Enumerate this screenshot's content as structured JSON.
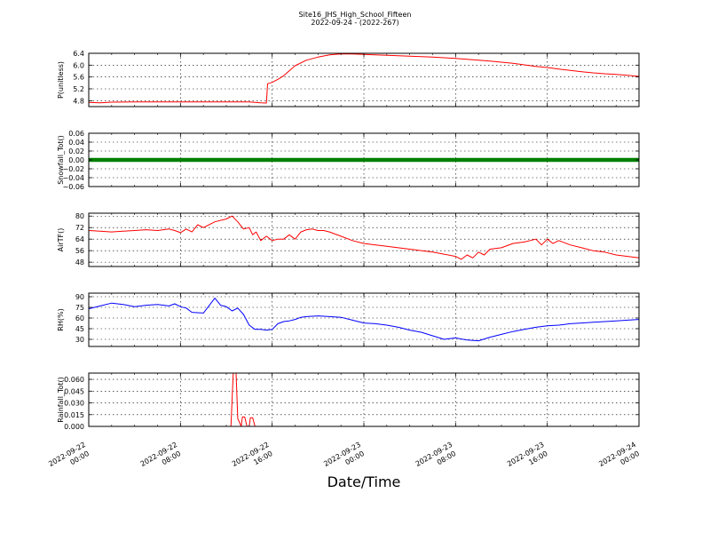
{
  "header": {
    "title": "Site16_JHS_High_School_Fifteen",
    "subtitle": "2022-09-24 - (2022-267)"
  },
  "chart_data": [
    {
      "type": "line",
      "ylabel": "P(unitless)",
      "ylim": [
        4.6,
        6.4
      ],
      "yticks": [
        "4.8",
        "5.2",
        "5.6",
        "6.0",
        "6.4"
      ],
      "grid": true,
      "series": [
        {
          "color": "#ff0000",
          "x": [
            0,
            1,
            2,
            4,
            6,
            8,
            10,
            12,
            14,
            15,
            15.5,
            15.6,
            16,
            16.5,
            17,
            18,
            19,
            20,
            21,
            22,
            23,
            24,
            26,
            28,
            30,
            32,
            33,
            34,
            35,
            36,
            37,
            38,
            39,
            40,
            41,
            42,
            43,
            44,
            45,
            46,
            47,
            48
          ],
          "y": [
            4.74,
            4.73,
            4.75,
            4.76,
            4.76,
            4.76,
            4.76,
            4.76,
            4.76,
            4.73,
            4.72,
            5.37,
            5.42,
            5.52,
            5.64,
            5.98,
            6.17,
            6.27,
            6.35,
            6.38,
            6.38,
            6.36,
            6.33,
            6.3,
            6.27,
            6.23,
            6.2,
            6.17,
            6.14,
            6.1,
            6.06,
            6.01,
            5.96,
            5.92,
            5.87,
            5.82,
            5.78,
            5.74,
            5.71,
            5.69,
            5.66,
            5.62
          ]
        }
      ]
    },
    {
      "type": "line",
      "ylabel": "Snowfall_Tot()",
      "ylim": [
        -0.06,
        0.06
      ],
      "yticks": [
        "−0.06",
        "−0.04",
        "−0.02",
        "0.00",
        "0.02",
        "0.04",
        "0.06"
      ],
      "grid": true,
      "series": [
        {
          "color": "#008000",
          "x": [
            0,
            48
          ],
          "y": [
            0,
            0
          ]
        }
      ]
    },
    {
      "type": "line",
      "ylabel": "AirTF()",
      "ylim": [
        45,
        82
      ],
      "yticks": [
        "48",
        "56",
        "64",
        "72",
        "80"
      ],
      "grid": true,
      "series": [
        {
          "color": "#ff0000",
          "x": [
            0,
            1,
            2,
            3,
            4,
            5,
            6,
            7,
            7.5,
            8,
            8.5,
            9,
            9.5,
            10,
            11,
            12,
            12.5,
            13,
            13.5,
            14,
            14.3,
            14.6,
            15,
            15.5,
            16,
            16.5,
            17,
            17.5,
            18,
            18.5,
            19,
            19.5,
            20,
            20.5,
            21,
            21.5,
            22,
            23,
            24,
            26,
            28,
            30,
            32,
            32.5,
            33,
            33.5,
            34,
            34.5,
            35,
            36,
            37,
            38,
            38.5,
            39,
            39.5,
            40,
            40.5,
            41,
            42,
            43,
            44,
            45,
            46,
            47,
            48
          ],
          "y": [
            70,
            69.5,
            69,
            69.5,
            70,
            70.5,
            70,
            71,
            70,
            68.5,
            71,
            69,
            74,
            72,
            76,
            78,
            80,
            76,
            71,
            72,
            67,
            69,
            63,
            66,
            63,
            64,
            64,
            67,
            64,
            69,
            70.5,
            71,
            70,
            70,
            69,
            67.5,
            66,
            63,
            61,
            59,
            57,
            55,
            52,
            50,
            53,
            51,
            55,
            53,
            57,
            58,
            61,
            62,
            63,
            64,
            60,
            64,
            61,
            63,
            60,
            58,
            56,
            55,
            53,
            52,
            51
          ]
        }
      ]
    },
    {
      "type": "line",
      "ylabel": "RH(%)",
      "ylim": [
        20,
        95
      ],
      "yticks": [
        "30",
        "45",
        "60",
        "75",
        "90"
      ],
      "grid": true,
      "series": [
        {
          "color": "#0000ff",
          "x": [
            0,
            1,
            2,
            3,
            4,
            5,
            6,
            7,
            7.5,
            8,
            8.5,
            9,
            10,
            11,
            11.5,
            12,
            12.5,
            13,
            13.5,
            14,
            14.5,
            15,
            15.5,
            16,
            16.5,
            17,
            17.5,
            18,
            18.5,
            19,
            20,
            21,
            22,
            23,
            24,
            25,
            26,
            27,
            28,
            29,
            30,
            31,
            32,
            33,
            34,
            35,
            36,
            37,
            38,
            39,
            40,
            41,
            41.5,
            42,
            43,
            44,
            45,
            46,
            47,
            48
          ],
          "y": [
            73,
            77,
            81,
            79,
            76,
            78,
            79,
            77,
            80,
            76,
            74,
            68,
            67,
            88,
            78,
            76,
            70,
            74,
            65,
            50,
            44,
            44,
            43,
            44,
            52,
            55,
            56,
            58,
            61,
            62,
            63,
            62,
            61,
            57,
            53,
            52,
            50,
            47,
            43,
            40,
            35,
            30,
            32,
            29,
            28,
            33,
            37,
            41,
            44,
            47,
            49,
            50,
            51,
            52,
            53,
            54,
            55,
            56,
            57,
            58
          ]
        }
      ]
    },
    {
      "type": "line",
      "ylabel": "Rainfall_Tot()",
      "ylim": [
        0,
        0.068
      ],
      "yticks": [
        "0.000",
        "0.015",
        "0.030",
        "0.045",
        "0.060"
      ],
      "grid": true,
      "series": [
        {
          "color": "#ff0000",
          "x": [
            0,
            12.4,
            12.6,
            12.85,
            13,
            13.3,
            13.4,
            13.6,
            13.8,
            14.0,
            14.1,
            14.3,
            14.5,
            14.6,
            14.8,
            48
          ],
          "y": [
            0,
            0,
            0.068,
            0.068,
            0.01,
            0,
            0.012,
            0.012,
            0,
            0,
            0.011,
            0.011,
            0,
            0,
            0,
            0
          ]
        }
      ]
    }
  ],
  "xaxis": {
    "label": "Date/Time",
    "range": [
      0,
      48
    ],
    "ticks": [
      {
        "x": 0,
        "line1": "2022-09-22",
        "line2": "00:00"
      },
      {
        "x": 8,
        "line1": "2022-09-22",
        "line2": "08:00"
      },
      {
        "x": 16,
        "line1": "2022-09-22",
        "line2": "16:00"
      },
      {
        "x": 24,
        "line1": "2022-09-23",
        "line2": "00:00"
      },
      {
        "x": 32,
        "line1": "2022-09-23",
        "line2": "08:00"
      },
      {
        "x": 40,
        "line1": "2022-09-23",
        "line2": "16:00"
      },
      {
        "x": 48,
        "line1": "2022-09-24",
        "line2": "00:00"
      }
    ]
  }
}
